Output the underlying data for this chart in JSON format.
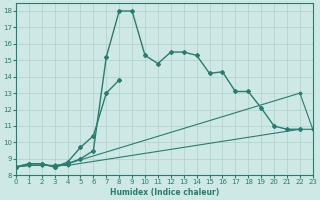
{
  "xlabel": "Humidex (Indice chaleur)",
  "bg_color": "#cde8e5",
  "line_color": "#2a7d6e",
  "grid_color": "#afd0cc",
  "series": [
    {
      "x": [
        0,
        1,
        2,
        3,
        4,
        5,
        6,
        7,
        8,
        9,
        10,
        11,
        12,
        13,
        14,
        15,
        16,
        17,
        18,
        19,
        20,
        21,
        22
      ],
      "y": [
        8.5,
        8.7,
        8.7,
        8.5,
        8.7,
        9.0,
        9.5,
        15.2,
        18.0,
        18.0,
        15.3,
        14.8,
        15.5,
        15.5,
        15.3,
        14.2,
        14.3,
        13.1,
        13.1,
        12.1,
        11.0,
        10.8,
        10.8
      ]
    },
    {
      "x": [
        0,
        1,
        2,
        3,
        4,
        5,
        6,
        7,
        8
      ],
      "y": [
        8.5,
        8.7,
        8.7,
        8.5,
        8.8,
        9.7,
        10.4,
        13.0,
        13.8
      ]
    },
    {
      "x": [
        0,
        1,
        2,
        3,
        4,
        22,
        23
      ],
      "y": [
        8.5,
        8.6,
        8.6,
        8.6,
        8.6,
        10.8,
        10.8
      ]
    },
    {
      "x": [
        0,
        1,
        2,
        3,
        4,
        22,
        23
      ],
      "y": [
        8.5,
        8.6,
        8.6,
        8.6,
        8.7,
        13.0,
        10.8
      ]
    }
  ],
  "series_styles": [
    {
      "lw": 1.0,
      "marker": "D",
      "ms": 2.0,
      "ls": "-"
    },
    {
      "lw": 1.0,
      "marker": "D",
      "ms": 2.0,
      "ls": "-"
    },
    {
      "lw": 0.8,
      "marker": "D",
      "ms": 1.5,
      "ls": "-"
    },
    {
      "lw": 0.8,
      "marker": "D",
      "ms": 1.5,
      "ls": "-"
    }
  ],
  "xlim": [
    0,
    23
  ],
  "ylim": [
    8,
    18.5
  ],
  "yticks": [
    8,
    9,
    10,
    11,
    12,
    13,
    14,
    15,
    16,
    17,
    18
  ],
  "xticks": [
    0,
    1,
    2,
    3,
    4,
    5,
    6,
    7,
    8,
    9,
    10,
    11,
    12,
    13,
    14,
    15,
    16,
    17,
    18,
    19,
    20,
    21,
    22,
    23
  ]
}
